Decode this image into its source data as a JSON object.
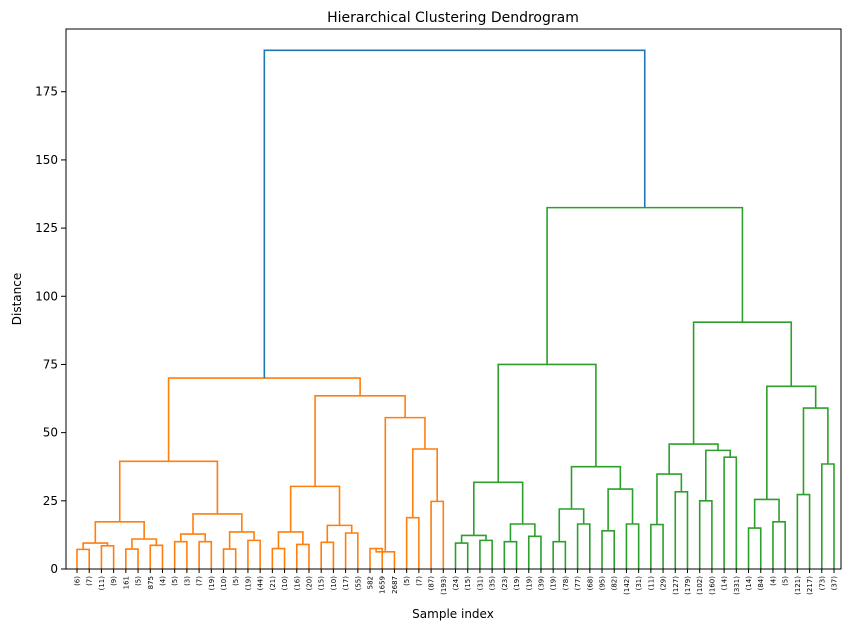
{
  "chart_data": {
    "type": "dendrogram",
    "title": "Hierarchical Clustering Dendrogram",
    "xlabel": "Sample index",
    "ylabel": "Distance",
    "ylim": [
      0,
      198
    ],
    "yticks": [
      0,
      25,
      50,
      75,
      100,
      125,
      150,
      175
    ],
    "grid": false,
    "colors": {
      "cluster_1": "#ff7f0e",
      "cluster_2": "#2ca02c",
      "root": "#1f77b4"
    },
    "leaves": [
      "(6)",
      "(7)",
      "(11)",
      "(9)",
      "161",
      "(5)",
      "875",
      "(4)",
      "(5)",
      "(3)",
      "(7)",
      "(19)",
      "(10)",
      "(5)",
      "(19)",
      "(44)",
      "(21)",
      "(10)",
      "(16)",
      "(20)",
      "(15)",
      "(10)",
      "(17)",
      "(55)",
      "582",
      "1659",
      "2687",
      "(5)",
      "(7)",
      "(87)",
      "(193)",
      "(24)",
      "(15)",
      "(31)",
      "(35)",
      "(23)",
      "(19)",
      "(19)",
      "(39)",
      "(19)",
      "(78)",
      "(77)",
      "(68)",
      "(95)",
      "(82)",
      "(142)",
      "(31)",
      "(11)",
      "(29)",
      "(127)",
      "(179)",
      "(102)",
      "(160)",
      "(14)",
      "(331)",
      "(14)",
      "(84)",
      "(4)",
      "(5)",
      "(121)",
      "(217)",
      "(73)",
      "(37)"
    ],
    "merges": [
      {
        "a": 0,
        "b": 1,
        "h": 7.2,
        "c": "cluster_1"
      },
      {
        "a": 2,
        "b": 3,
        "h": 8.5,
        "c": "cluster_1"
      },
      {
        "a": "M0",
        "b": "M1",
        "h": 9.5,
        "c": "cluster_1"
      },
      {
        "a": 4,
        "b": 5,
        "h": 7.3,
        "c": "cluster_1"
      },
      {
        "a": 6,
        "b": 7,
        "h": 8.7,
        "c": "cluster_1"
      },
      {
        "a": "M3",
        "b": "M4",
        "h": 11,
        "c": "cluster_1"
      },
      {
        "a": "M2",
        "b": "M5",
        "h": 17.3,
        "c": "cluster_1"
      },
      {
        "a": 8,
        "b": 9,
        "h": 10,
        "c": "cluster_1"
      },
      {
        "a": 10,
        "b": 11,
        "h": 10,
        "c": "cluster_1"
      },
      {
        "a": "M7",
        "b": "M8",
        "h": 12.8,
        "c": "cluster_1"
      },
      {
        "a": 12,
        "b": 13,
        "h": 7.3,
        "c": "cluster_1"
      },
      {
        "a": 14,
        "b": 15,
        "h": 10.5,
        "c": "cluster_1"
      },
      {
        "a": "M10",
        "b": "M11",
        "h": 13.6,
        "c": "cluster_1"
      },
      {
        "a": "M9",
        "b": "M12",
        "h": 20.2,
        "c": "cluster_1"
      },
      {
        "a": "M6",
        "b": "M13",
        "h": 39.5,
        "c": "cluster_1"
      },
      {
        "a": 16,
        "b": 17,
        "h": 7.5,
        "c": "cluster_1"
      },
      {
        "a": 18,
        "b": 19,
        "h": 9,
        "c": "cluster_1"
      },
      {
        "a": "M15",
        "b": "M16",
        "h": 13.6,
        "c": "cluster_1"
      },
      {
        "a": 20,
        "b": 21,
        "h": 9.8,
        "c": "cluster_1"
      },
      {
        "a": 22,
        "b": 23,
        "h": 13.2,
        "c": "cluster_1"
      },
      {
        "a": "M18",
        "b": "M19",
        "h": 16,
        "c": "cluster_1"
      },
      {
        "a": "M17",
        "b": "M20",
        "h": 30.3,
        "c": "cluster_1"
      },
      {
        "a": 24,
        "b": 25,
        "h": 7.5,
        "c": "cluster_1"
      },
      {
        "a": "M22",
        "b": 26,
        "h": 6.3,
        "c": "cluster_1"
      },
      {
        "a": 27,
        "b": 28,
        "h": 18.8,
        "c": "cluster_1"
      },
      {
        "a": 29,
        "b": 30,
        "h": 24.8,
        "c": "cluster_1"
      },
      {
        "a": "M24",
        "b": "M25",
        "h": 44,
        "c": "cluster_1"
      },
      {
        "a": "M23",
        "b": "M26",
        "h": 55.5,
        "c": "cluster_1"
      },
      {
        "a": "M21",
        "b": "M27",
        "h": 63.5,
        "c": "cluster_1"
      },
      {
        "a": "M14",
        "b": "M28",
        "h": 70,
        "c": "cluster_1"
      },
      {
        "a": 31,
        "b": 32,
        "h": 9.5,
        "c": "cluster_2"
      },
      {
        "a": 33,
        "b": 34,
        "h": 10.5,
        "c": "cluster_2"
      },
      {
        "a": "M30",
        "b": "M31",
        "h": 12.3,
        "c": "cluster_2"
      },
      {
        "a": 35,
        "b": 36,
        "h": 10,
        "c": "cluster_2"
      },
      {
        "a": 37,
        "b": 38,
        "h": 12,
        "c": "cluster_2"
      },
      {
        "a": "M33",
        "b": "M34",
        "h": 16.5,
        "c": "cluster_2"
      },
      {
        "a": "M32",
        "b": "M35",
        "h": 31.8,
        "c": "cluster_2"
      },
      {
        "a": 39,
        "b": 40,
        "h": 10,
        "c": "cluster_2"
      },
      {
        "a": 41,
        "b": 42,
        "h": 16.5,
        "c": "cluster_2"
      },
      {
        "a": "M37",
        "b": "M38",
        "h": 22,
        "c": "cluster_2"
      },
      {
        "a": 43,
        "b": 44,
        "h": 14,
        "c": "cluster_2"
      },
      {
        "a": 45,
        "b": 46,
        "h": 16.5,
        "c": "cluster_2"
      },
      {
        "a": "M40",
        "b": "M41",
        "h": 29.3,
        "c": "cluster_2"
      },
      {
        "a": "M39",
        "b": "M42",
        "h": 37.5,
        "c": "cluster_2"
      },
      {
        "a": "M36",
        "b": "M43",
        "h": 75,
        "c": "cluster_2"
      },
      {
        "a": 47,
        "b": 48,
        "h": 16.3,
        "c": "cluster_2"
      },
      {
        "a": 49,
        "b": 50,
        "h": 28.3,
        "c": "cluster_2"
      },
      {
        "a": "M45",
        "b": "M46",
        "h": 34.8,
        "c": "cluster_2"
      },
      {
        "a": 51,
        "b": 52,
        "h": 25,
        "c": "cluster_2"
      },
      {
        "a": 53,
        "b": 54,
        "h": 41,
        "c": "cluster_2"
      },
      {
        "a": "M48",
        "b": "M49",
        "h": 43.5,
        "c": "cluster_2"
      },
      {
        "a": "M47",
        "b": "M50",
        "h": 45.8,
        "c": "cluster_2"
      },
      {
        "a": 55,
        "b": 56,
        "h": 15,
        "c": "cluster_2"
      },
      {
        "a": 57,
        "b": 58,
        "h": 17.3,
        "c": "cluster_2"
      },
      {
        "a": "M52",
        "b": "M53",
        "h": 25.5,
        "c": "cluster_2"
      },
      {
        "a": 59,
        "b": 60,
        "h": 27.3,
        "c": "cluster_2"
      },
      {
        "a": 61,
        "b": 62,
        "h": 38.5,
        "c": "cluster_2"
      },
      {
        "a": "M55",
        "b": "M56",
        "h": 59,
        "c": "cluster_2"
      },
      {
        "a": "M54",
        "b": "M57",
        "h": 67,
        "c": "cluster_2"
      },
      {
        "a": "M51",
        "b": "M58",
        "h": 90.5,
        "c": "cluster_2"
      },
      {
        "a": "M44",
        "b": "M59",
        "h": 132.5,
        "c": "cluster_2"
      },
      {
        "a": "M29",
        "b": "M60",
        "h": 190.2,
        "c": "root"
      }
    ]
  }
}
